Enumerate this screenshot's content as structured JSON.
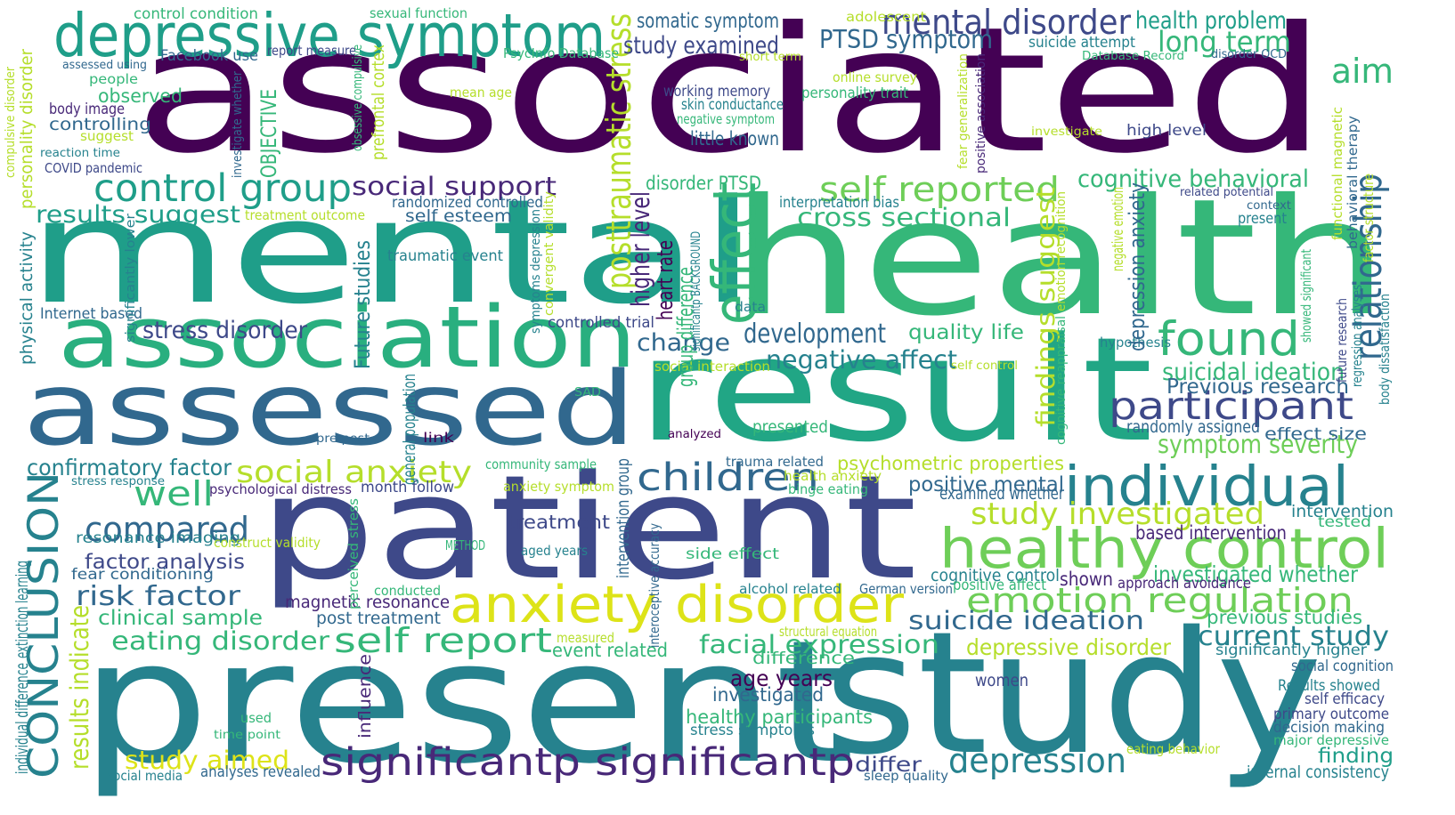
{
  "palette": {
    "dark_purple": "#440154",
    "purple": "#482878",
    "indigo": "#3e4989",
    "blue": "#31688e",
    "teal_blue": "#26828e",
    "teal": "#1f9e89",
    "green": "#35b779",
    "light_green": "#6ece58",
    "yellow_green": "#b5de2b",
    "yellow": "#fde725"
  },
  "words": [
    {
      "text": "associated",
      "color": "#440154"
    },
    {
      "text": "mental",
      "color": "#1f9e89"
    },
    {
      "text": "health",
      "color": "#35b779"
    },
    {
      "text": "present",
      "color": "#26828e"
    },
    {
      "text": "study",
      "color": "#26828e"
    },
    {
      "text": "patient",
      "color": "#3e4989"
    },
    {
      "text": "result",
      "color": "#21a685"
    },
    {
      "text": "assessed",
      "color": "#31688e"
    },
    {
      "text": "association",
      "color": "#29af7f"
    },
    {
      "text": "depressive symptom",
      "color": "#1f9e89"
    },
    {
      "text": "healthy control",
      "color": "#6ece58"
    },
    {
      "text": "anxiety disorder",
      "color": "#dde318"
    },
    {
      "text": "individual",
      "color": "#26828e"
    },
    {
      "text": "mental disorder",
      "color": "#3e4989"
    },
    {
      "text": "effect",
      "color": "#35b779"
    },
    {
      "text": "found",
      "color": "#35b779"
    },
    {
      "text": "participant",
      "color": "#3e4989"
    },
    {
      "text": "significantp significantp",
      "color": "#482878"
    },
    {
      "text": "children",
      "color": "#31688e"
    },
    {
      "text": "self reported",
      "color": "#6ece58"
    },
    {
      "text": "relationship",
      "color": "#31688e"
    },
    {
      "text": "CONCLUSION",
      "color": "#26828e"
    },
    {
      "text": "control group",
      "color": "#1f9e89"
    },
    {
      "text": "self report",
      "color": "#35b779"
    },
    {
      "text": "emotion regulation",
      "color": "#6ece58"
    },
    {
      "text": "depression",
      "color": "#26828e"
    },
    {
      "text": "compared",
      "color": "#31688e"
    },
    {
      "text": "well",
      "color": "#35b779"
    },
    {
      "text": "social anxiety",
      "color": "#b5de2b"
    },
    {
      "text": "posttraumatic stress",
      "color": "#b5de2b"
    },
    {
      "text": "findings suggest",
      "color": "#b5de2b"
    },
    {
      "text": "aim",
      "color": "#35b779"
    },
    {
      "text": "long term",
      "color": "#35b779"
    },
    {
      "text": "PTSD symptom",
      "color": "#31688e"
    },
    {
      "text": "study examined",
      "color": "#3e4989"
    },
    {
      "text": "health problem",
      "color": "#1f9e89"
    },
    {
      "text": "somatic symptom",
      "color": "#31688e"
    },
    {
      "text": "social support",
      "color": "#482878"
    },
    {
      "text": "results suggest",
      "color": "#1f9e89"
    },
    {
      "text": "cross sectional",
      "color": "#35b779"
    },
    {
      "text": "cognitive behavioral",
      "color": "#35b779"
    },
    {
      "text": "development",
      "color": "#31688e"
    },
    {
      "text": "negative affect",
      "color": "#26828e"
    },
    {
      "text": "change",
      "color": "#31688e"
    },
    {
      "text": "quality life",
      "color": "#35b779"
    },
    {
      "text": "stress disorder",
      "color": "#3e4989"
    },
    {
      "text": "suicidal ideation",
      "color": "#35b779"
    },
    {
      "text": "Previous research",
      "color": "#31688e"
    },
    {
      "text": "symptom severity",
      "color": "#6ece58"
    },
    {
      "text": "randomly assigned",
      "color": "#31688e"
    },
    {
      "text": "effect size",
      "color": "#31688e"
    },
    {
      "text": "confirmatory factor",
      "color": "#26828e"
    },
    {
      "text": "psychometric properties",
      "color": "#b5de2b"
    },
    {
      "text": "positive mental",
      "color": "#31688e"
    },
    {
      "text": "examined whether",
      "color": "#31688e"
    },
    {
      "text": "study investigated",
      "color": "#b5de2b"
    },
    {
      "text": "intervention",
      "color": "#26828e"
    },
    {
      "text": "tested",
      "color": "#35b779"
    },
    {
      "text": "based intervention",
      "color": "#482878"
    },
    {
      "text": "investigated whether",
      "color": "#35b779"
    },
    {
      "text": "shown",
      "color": "#482878"
    },
    {
      "text": "cognitive control",
      "color": "#26828e"
    },
    {
      "text": "positive affect",
      "color": "#35b779"
    },
    {
      "text": "approach avoidance",
      "color": "#482878"
    },
    {
      "text": "suicide ideation",
      "color": "#31688e"
    },
    {
      "text": "previous studies",
      "color": "#35b779"
    },
    {
      "text": "current study",
      "color": "#26828e"
    },
    {
      "text": "significantly higher",
      "color": "#26828e"
    },
    {
      "text": "depressive disorder",
      "color": "#b5de2b"
    },
    {
      "text": "social cognition",
      "color": "#31688e"
    },
    {
      "text": "Results showed",
      "color": "#26828e"
    },
    {
      "text": "self efficacy",
      "color": "#3e4989"
    },
    {
      "text": "primary outcome",
      "color": "#3e4989"
    },
    {
      "text": "decision making",
      "color": "#31688e"
    },
    {
      "text": "major depressive",
      "color": "#35b779"
    },
    {
      "text": "finding",
      "color": "#1f9e89"
    },
    {
      "text": "eating behavior",
      "color": "#b5de2b"
    },
    {
      "text": "internal consistency",
      "color": "#26828e"
    },
    {
      "text": "women",
      "color": "#3e4989"
    },
    {
      "text": "facial expression",
      "color": "#35b779"
    },
    {
      "text": "difference",
      "color": "#35b779"
    },
    {
      "text": "age years",
      "color": "#440154"
    },
    {
      "text": "investigated",
      "color": "#31688e"
    },
    {
      "text": "healthy participants",
      "color": "#35b779"
    },
    {
      "text": "stress symptoms",
      "color": "#26828e"
    },
    {
      "text": "differ",
      "color": "#3e4989"
    },
    {
      "text": "sleep quality",
      "color": "#31688e"
    },
    {
      "text": "eating disorder",
      "color": "#35b779"
    },
    {
      "text": "study aimed",
      "color": "#dde318"
    },
    {
      "text": "risk factor",
      "color": "#31688e"
    },
    {
      "text": "clinical sample",
      "color": "#35b779"
    },
    {
      "text": "factor analysis",
      "color": "#3e4989"
    },
    {
      "text": "fear conditioning",
      "color": "#31688e"
    },
    {
      "text": "resonance imaging",
      "color": "#26828e"
    },
    {
      "text": "magnetic resonance",
      "color": "#482878"
    },
    {
      "text": "post treatment",
      "color": "#31688e"
    },
    {
      "text": "treatment",
      "color": "#3e4989"
    },
    {
      "text": "side effect",
      "color": "#35b779"
    },
    {
      "text": "alcohol related",
      "color": "#26828e"
    },
    {
      "text": "German version",
      "color": "#31688e"
    },
    {
      "text": "event related",
      "color": "#35b779"
    },
    {
      "text": "measured",
      "color": "#b5de2b"
    },
    {
      "text": "conducted",
      "color": "#35b779"
    },
    {
      "text": "aged years",
      "color": "#26828e"
    },
    {
      "text": "METHOD",
      "color": "#35b779"
    },
    {
      "text": "structural equation",
      "color": "#b5de2b"
    },
    {
      "text": "results indicate",
      "color": "#b5de2b"
    },
    {
      "text": "used",
      "color": "#35b779"
    },
    {
      "text": "time point",
      "color": "#35b779"
    },
    {
      "text": "social media",
      "color": "#26828e"
    },
    {
      "text": "analyses revealed",
      "color": "#31688e"
    },
    {
      "text": "influence",
      "color": "#482878"
    },
    {
      "text": "individual difference",
      "color": "#26828e"
    },
    {
      "text": "extinction learning",
      "color": "#26828e"
    },
    {
      "text": "construct validity",
      "color": "#b5de2b"
    },
    {
      "text": "perceived stress",
      "color": "#35b779"
    },
    {
      "text": "interoceptive accuracy",
      "color": "#31688e"
    },
    {
      "text": "intervention group",
      "color": "#31688e"
    },
    {
      "text": "month follow",
      "color": "#3e4989"
    },
    {
      "text": "anxiety symptom",
      "color": "#b5de2b"
    },
    {
      "text": "psychological distress",
      "color": "#482878"
    },
    {
      "text": "stress response",
      "color": "#26828e"
    },
    {
      "text": "community sample",
      "color": "#35b779"
    },
    {
      "text": "trauma related",
      "color": "#31688e"
    },
    {
      "text": "health anxiety",
      "color": "#b5de2b"
    },
    {
      "text": "binge eating",
      "color": "#35b779"
    },
    {
      "text": "pre post",
      "color": "#31688e"
    },
    {
      "text": "link",
      "color": "#440154"
    },
    {
      "text": "general population",
      "color": "#26828e"
    },
    {
      "text": "analyzed",
      "color": "#440154"
    },
    {
      "text": "presented",
      "color": "#35b779"
    },
    {
      "text": "SAD",
      "color": "#35b779"
    },
    {
      "text": "social interaction",
      "color": "#b5de2b"
    },
    {
      "text": "self control",
      "color": "#b5de2b"
    },
    {
      "text": "hypothesis",
      "color": "#26828e"
    },
    {
      "text": "Future studies",
      "color": "#26828e"
    },
    {
      "text": "traumatic event",
      "color": "#26828e"
    },
    {
      "text": "controlled trial",
      "color": "#3e4989"
    },
    {
      "text": "data",
      "color": "#26828e"
    },
    {
      "text": "higher level",
      "color": "#482878"
    },
    {
      "text": "heart rate",
      "color": "#440154"
    },
    {
      "text": "group difference",
      "color": "#35b779"
    },
    {
      "text": "significantp BACKGROUND",
      "color": "#26828e"
    },
    {
      "text": "disorder PTSD",
      "color": "#35b779"
    },
    {
      "text": "interpretation bias",
      "color": "#26828e"
    },
    {
      "text": "self esteem",
      "color": "#31688e"
    },
    {
      "text": "randomized controlled",
      "color": "#31688e"
    },
    {
      "text": "treatment outcome",
      "color": "#b5de2b"
    },
    {
      "text": "convergent validity",
      "color": "#b5de2b"
    },
    {
      "text": "symptoms depression",
      "color": "#26828e"
    },
    {
      "text": "Internet based",
      "color": "#31688e"
    },
    {
      "text": "physical activity",
      "color": "#26828e"
    },
    {
      "text": "significantly lower",
      "color": "#26828e"
    },
    {
      "text": "depression anxiety",
      "color": "#31688e"
    },
    {
      "text": "emotion recognition",
      "color": "#b5de2b"
    },
    {
      "text": "cognitive reappraisal",
      "color": "#35b779"
    },
    {
      "text": "negative emotion",
      "color": "#b5de2b"
    },
    {
      "text": "negative symptom",
      "color": "#35b779"
    },
    {
      "text": "skin conductance",
      "color": "#26828e"
    },
    {
      "text": "working memory",
      "color": "#3e4989"
    },
    {
      "text": "little known",
      "color": "#31688e"
    },
    {
      "text": "personality trait",
      "color": "#35b779"
    },
    {
      "text": "mean age",
      "color": "#b5de2b"
    },
    {
      "text": "PsycInfo Database",
      "color": "#35b779"
    },
    {
      "text": "short term",
      "color": "#b5de2b"
    },
    {
      "text": "online survey",
      "color": "#b5de2b"
    },
    {
      "text": "adolescent",
      "color": "#b5de2b"
    },
    {
      "text": "sexual function",
      "color": "#35b779"
    },
    {
      "text": "control condition",
      "color": "#35b779"
    },
    {
      "text": "report measure",
      "color": "#3e4989"
    },
    {
      "text": "Facebook use",
      "color": "#31688e"
    },
    {
      "text": "assessed using",
      "color": "#31688e"
    },
    {
      "text": "people",
      "color": "#35b779"
    },
    {
      "text": "observed",
      "color": "#35b779"
    },
    {
      "text": "body image",
      "color": "#482878"
    },
    {
      "text": "controlling",
      "color": "#31688e"
    },
    {
      "text": "suggest",
      "color": "#b5de2b"
    },
    {
      "text": "reaction time",
      "color": "#26828e"
    },
    {
      "text": "COVID pandemic",
      "color": "#3e4989"
    },
    {
      "text": "compulsive disorder",
      "color": "#b5de2b"
    },
    {
      "text": "personality disorder",
      "color": "#b5de2b"
    },
    {
      "text": "investigate whether",
      "color": "#31688e"
    },
    {
      "text": "OBJECTIVE",
      "color": "#35b779"
    },
    {
      "text": "obsessive compulsive",
      "color": "#35b779"
    },
    {
      "text": "prefrontal cortex",
      "color": "#b5de2b"
    },
    {
      "text": "suicide attempt",
      "color": "#26828e"
    },
    {
      "text": "Database Record",
      "color": "#35b779"
    },
    {
      "text": "disorder OCD",
      "color": "#31688e"
    },
    {
      "text": "fear generalization",
      "color": "#b5de2b"
    },
    {
      "text": "positive association",
      "color": "#482878"
    },
    {
      "text": "investigate",
      "color": "#b5de2b"
    },
    {
      "text": "high level",
      "color": "#3e4989"
    },
    {
      "text": "functional magnetic",
      "color": "#b5de2b"
    },
    {
      "text": "behavioral therapy",
      "color": "#31688e"
    },
    {
      "text": "factor structure",
      "color": "#b5de2b"
    },
    {
      "text": "related potential",
      "color": "#3e4989"
    },
    {
      "text": "context",
      "color": "#31688e"
    },
    {
      "text": "present",
      "color": "#26828e"
    },
    {
      "text": "showed significant",
      "color": "#35b779"
    },
    {
      "text": "future research",
      "color": "#3e4989"
    },
    {
      "text": "regression analyses",
      "color": "#26828e"
    },
    {
      "text": "body dissatisfaction",
      "color": "#26828e"
    }
  ]
}
